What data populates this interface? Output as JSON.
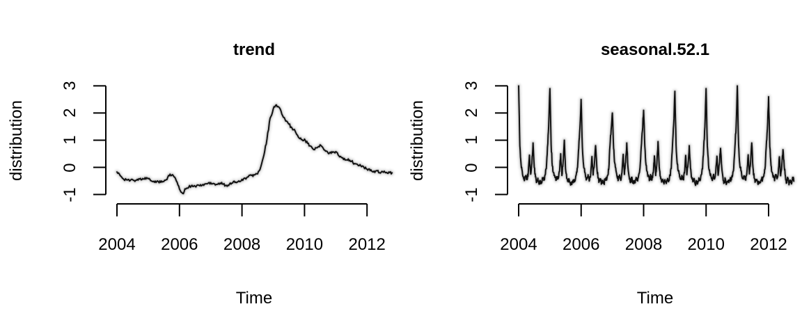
{
  "figure": {
    "background": "#ffffff",
    "text_color": "#000000",
    "axis_color": "#000000",
    "line_color": "#000000",
    "band_color": "rgba(0,0,0,0.15)"
  },
  "chart_data": [
    {
      "type": "line",
      "title": "trend",
      "xlabel": "Time",
      "ylabel": "distribution",
      "x_ticks": [
        2004,
        2006,
        2008,
        2010,
        2012
      ],
      "x_tick_labels": [
        "2004",
        "2006",
        "2008",
        "2010",
        "2012"
      ],
      "y_ticks": [
        -1,
        0,
        1,
        2,
        3
      ],
      "y_tick_labels": [
        "-1",
        "0",
        "1",
        "2",
        "3"
      ],
      "xlim": [
        2004.0,
        2012.8
      ],
      "ylim": [
        -1,
        3
      ],
      "grid": "off",
      "legend": "none",
      "x_start": 2004.0,
      "x_step": 0.1,
      "noise_amplitude": 0.05,
      "values": [
        -0.17,
        -0.3,
        -0.42,
        -0.45,
        -0.5,
        -0.45,
        -0.48,
        -0.42,
        -0.45,
        -0.38,
        -0.42,
        -0.5,
        -0.55,
        -0.5,
        -0.55,
        -0.52,
        -0.45,
        -0.25,
        -0.3,
        -0.5,
        -0.8,
        -0.96,
        -0.8,
        -0.72,
        -0.66,
        -0.7,
        -0.65,
        -0.68,
        -0.62,
        -0.6,
        -0.56,
        -0.6,
        -0.63,
        -0.58,
        -0.62,
        -0.66,
        -0.62,
        -0.58,
        -0.54,
        -0.5,
        -0.44,
        -0.4,
        -0.35,
        -0.3,
        -0.28,
        -0.24,
        0.01,
        0.44,
        1.04,
        1.81,
        2.15,
        2.3,
        2.19,
        1.9,
        1.7,
        1.59,
        1.45,
        1.34,
        1.12,
        1.02,
        1.04,
        0.88,
        0.78,
        0.65,
        0.72,
        0.83,
        0.7,
        0.6,
        0.53,
        0.55,
        0.58,
        0.42,
        0.35,
        0.27,
        0.31,
        0.22,
        0.14,
        0.1,
        0.06,
        0.0,
        -0.07,
        -0.12,
        -0.17,
        -0.12,
        -0.2,
        -0.16,
        -0.2,
        -0.17,
        -0.2
      ]
    },
    {
      "type": "line",
      "title": "seasonal.52.1",
      "xlabel": "Time",
      "ylabel": "distribution",
      "x_ticks": [
        2004,
        2006,
        2008,
        2010,
        2012
      ],
      "x_tick_labels": [
        "2004",
        "2006",
        "2008",
        "2010",
        "2012"
      ],
      "y_ticks": [
        -1,
        0,
        1,
        2,
        3
      ],
      "y_tick_labels": [
        "-1",
        "0",
        "1",
        "2",
        "3"
      ],
      "xlim": [
        2004.0,
        2012.81
      ],
      "ylim": [
        -1,
        3
      ],
      "grid": "off",
      "legend": "none",
      "x_start": 2004.0,
      "x_step": 0.0384615,
      "noise_amplitude": 0.08,
      "values": [
        3.0,
        0.8,
        0.1,
        -0.15,
        -0.35,
        -0.45,
        -0.3,
        -0.45,
        -0.2,
        0.45,
        -0.25,
        0.15,
        0.9,
        0.0,
        -0.35,
        -0.55,
        -0.4,
        -0.62,
        -0.5,
        -0.58,
        -0.4,
        -0.48,
        -0.28,
        -0.05,
        0.75,
        1.5,
        2.9,
        0.85,
        0.05,
        -0.2,
        -0.3,
        -0.48,
        -0.35,
        -0.4,
        -0.15,
        0.5,
        -0.3,
        0.2,
        1.0,
        -0.05,
        -0.4,
        -0.5,
        -0.45,
        -0.6,
        -0.55,
        -0.55,
        -0.45,
        -0.5,
        -0.25,
        0.0,
        0.7,
        1.45,
        2.5,
        0.75,
        0.1,
        -0.18,
        -0.38,
        -0.42,
        -0.32,
        -0.46,
        -0.22,
        0.4,
        -0.28,
        0.1,
        0.8,
        0.05,
        -0.38,
        -0.52,
        -0.42,
        -0.6,
        -0.48,
        -0.6,
        -0.42,
        -0.45,
        -0.3,
        -0.08,
        0.8,
        1.4,
        2.0,
        0.7,
        0.15,
        -0.12,
        -0.36,
        -0.44,
        -0.28,
        -0.48,
        -0.18,
        0.48,
        -0.26,
        0.18,
        0.9,
        -0.02,
        -0.36,
        -0.56,
        -0.38,
        -0.58,
        -0.52,
        -0.56,
        -0.38,
        -0.5,
        -0.26,
        -0.02,
        0.72,
        1.35,
        2.1,
        0.78,
        0.08,
        -0.16,
        -0.34,
        -0.46,
        -0.3,
        -0.44,
        -0.2,
        0.42,
        -0.3,
        0.12,
        0.95,
        0.02,
        -0.34,
        -0.54,
        -0.44,
        -0.61,
        -0.5,
        -0.57,
        -0.41,
        -0.47,
        -0.29,
        -0.04,
        0.78,
        1.55,
        2.8,
        0.82,
        0.12,
        -0.14,
        -0.36,
        -0.44,
        -0.31,
        -0.45,
        -0.21,
        0.44,
        -0.27,
        0.14,
        0.8,
        -0.03,
        -0.37,
        -0.53,
        -0.41,
        -0.63,
        -0.49,
        -0.59,
        -0.39,
        -0.49,
        -0.27,
        -0.06,
        0.73,
        1.48,
        2.9,
        0.79,
        0.09,
        -0.17,
        -0.33,
        -0.47,
        -0.29,
        -0.43,
        -0.19,
        0.41,
        -0.29,
        0.11,
        0.7,
        0.01,
        -0.36,
        -0.56,
        -0.43,
        -0.6,
        -0.51,
        -0.56,
        -0.42,
        -0.46,
        -0.31,
        -0.03,
        0.77,
        1.52,
        3.0,
        0.83,
        0.11,
        -0.13,
        -0.37,
        -0.43,
        -0.33,
        -0.47,
        -0.17,
        0.46,
        -0.24,
        0.16,
        0.9,
        -0.01,
        -0.39,
        -0.51,
        -0.46,
        -0.59,
        -0.53,
        -0.54,
        -0.44,
        -0.44,
        -0.33,
        -0.07,
        0.71,
        1.42,
        2.6,
        0.76,
        0.07,
        -0.19,
        -0.32,
        -0.49,
        -0.27,
        -0.42,
        -0.23,
        0.39,
        -0.31,
        0.09,
        0.65,
        0.04,
        -0.33,
        -0.57,
        -0.39,
        -0.64,
        -0.47,
        -0.61,
        -0.37,
        -0.51
      ]
    }
  ]
}
